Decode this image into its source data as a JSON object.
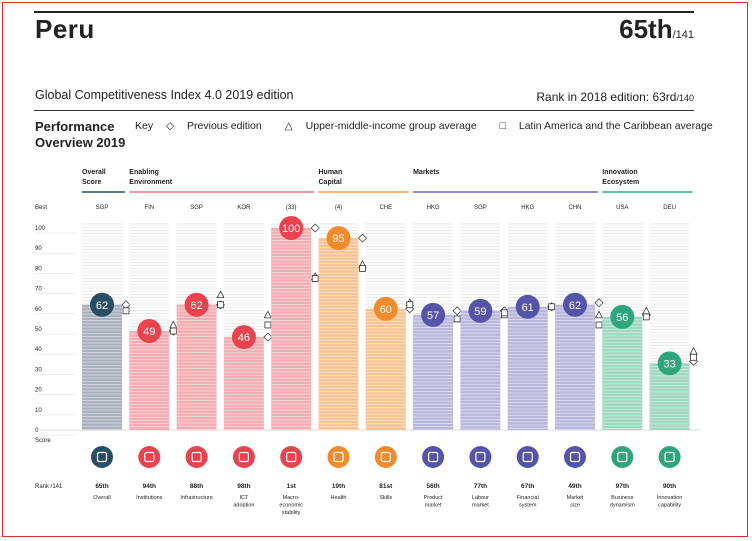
{
  "header": {
    "country": "Peru",
    "rank": "65th",
    "rank_suffix": "/141",
    "edition": "Global Competitiveness Index 4.0 2019 edition",
    "prev_rank_label": "Rank in 2018 edition: 63rd",
    "prev_rank_suffix": "/140"
  },
  "legend": {
    "title_line1": "Performance",
    "title_line2": "Overview 2019",
    "key_label": "Key",
    "items": [
      "Previous edition",
      "Upper-middle-income group average",
      "Latin America and the Caribbean average"
    ],
    "symbols": [
      "◇",
      "△",
      "□"
    ]
  },
  "chart_data": {
    "type": "bar",
    "ylim": [
      0,
      100
    ],
    "y_ticks": [
      0,
      10,
      20,
      30,
      40,
      50,
      60,
      70,
      80,
      90,
      100
    ],
    "best_label": "Best",
    "score_label": "Score",
    "rank_row_label": "Rank /141",
    "groups": [
      {
        "label_line1": "Overall",
        "label_line2": "Score",
        "color": "#2a4d66",
        "start": 0,
        "end": 0
      },
      {
        "label_line1": "Enabling",
        "label_line2": "Environment",
        "color": "#e0787d",
        "start": 1,
        "end": 4
      },
      {
        "label_line1": "Human",
        "label_line2": "Capital",
        "color": "#f39a52",
        "start": 5,
        "end": 6
      },
      {
        "label_line1": "Markets",
        "label_line2": "",
        "color": "#6a69b5",
        "start": 7,
        "end": 10
      },
      {
        "label_line1": "Innovation",
        "label_line2": "Ecosystem",
        "color": "#3aaa80",
        "start": 11,
        "end": 12
      }
    ],
    "pillars": [
      {
        "name": [
          "Overall"
        ],
        "value": 62,
        "rank": "65th",
        "best": "SGP",
        "color": "#2a4d66",
        "light": "#aab1bd",
        "icon": "bulb-icon",
        "prev": 62,
        "group_avg": null,
        "latam_avg": 59
      },
      {
        "name": [
          "Institutions"
        ],
        "value": 49,
        "rank": "94th",
        "best": "FIN",
        "color": "#e8434e",
        "light": "#f2aeb2",
        "icon": "institution-icon",
        "prev": 49,
        "group_avg": 52,
        "latam_avg": 49
      },
      {
        "name": [
          "Infrastructure"
        ],
        "value": 62,
        "rank": "88th",
        "best": "SGP",
        "color": "#e8434e",
        "light": "#f2aeb2",
        "icon": "train-icon",
        "prev": 62,
        "group_avg": 67,
        "latam_avg": 62
      },
      {
        "name": [
          "ICT",
          "adoption"
        ],
        "value": 46,
        "rank": "98th",
        "best": "KOR",
        "color": "#e8434e",
        "light": "#f2aeb2",
        "icon": "chip-icon",
        "prev": 46,
        "group_avg": 57,
        "latam_avg": 52
      },
      {
        "name": [
          "Macro-",
          "economic",
          "stability"
        ],
        "value": 100,
        "rank": "1st",
        "best": "(33)",
        "color": "#e8434e",
        "light": "#f2aeb2",
        "icon": "percent-icon",
        "prev": 100,
        "group_avg": 76,
        "latam_avg": 75
      },
      {
        "name": [
          "Health"
        ],
        "value": 95,
        "rank": "19th",
        "best": "(4)",
        "color": "#f28a2e",
        "light": "#f8c495",
        "icon": "heart-icon",
        "prev": 95,
        "group_avg": 82,
        "latam_avg": 80
      },
      {
        "name": [
          "Skills"
        ],
        "value": 60,
        "rank": "81st",
        "best": "CHE",
        "color": "#f28a2e",
        "light": "#f8c495",
        "icon": "person-icon",
        "prev": 60,
        "group_avg": 63,
        "latam_avg": 62
      },
      {
        "name": [
          "Product",
          "market"
        ],
        "value": 57,
        "rank": "56th",
        "best": "HKG",
        "color": "#5654a8",
        "light": "#b9b8dc",
        "icon": "tag-icon",
        "prev": 59,
        "group_avg": 55,
        "latam_avg": 55
      },
      {
        "name": [
          "Labour",
          "market"
        ],
        "value": 59,
        "rank": "77th",
        "best": "SGP",
        "color": "#5654a8",
        "light": "#b9b8dc",
        "icon": "people-icon",
        "prev": 59,
        "group_avg": 57,
        "latam_avg": 58
      },
      {
        "name": [
          "Financial",
          "system"
        ],
        "value": 61,
        "rank": "67th",
        "best": "HKG",
        "color": "#5654a8",
        "light": "#b9b8dc",
        "icon": "card-icon",
        "prev": 61,
        "group_avg": 61,
        "latam_avg": 61
      },
      {
        "name": [
          "Market",
          "size"
        ],
        "value": 62,
        "rank": "49th",
        "best": "CHN",
        "color": "#5654a8",
        "light": "#b9b8dc",
        "icon": "expand-icon",
        "prev": 63,
        "group_avg": 57,
        "latam_avg": 52
      },
      {
        "name": [
          "Business",
          "dynamism"
        ],
        "value": 56,
        "rank": "97th",
        "best": "USA",
        "color": "#2ea57a",
        "light": "#9fd7bf",
        "icon": "building-icon",
        "prev": 57,
        "group_avg": 59,
        "latam_avg": 56
      },
      {
        "name": [
          "Innovation",
          "capability"
        ],
        "value": 33,
        "rank": "90th",
        "best": "DEU",
        "color": "#2ea57a",
        "light": "#9fd7bf",
        "icon": "lightbulb-icon",
        "prev": 34,
        "group_avg": 39,
        "latam_avg": 36
      }
    ]
  }
}
